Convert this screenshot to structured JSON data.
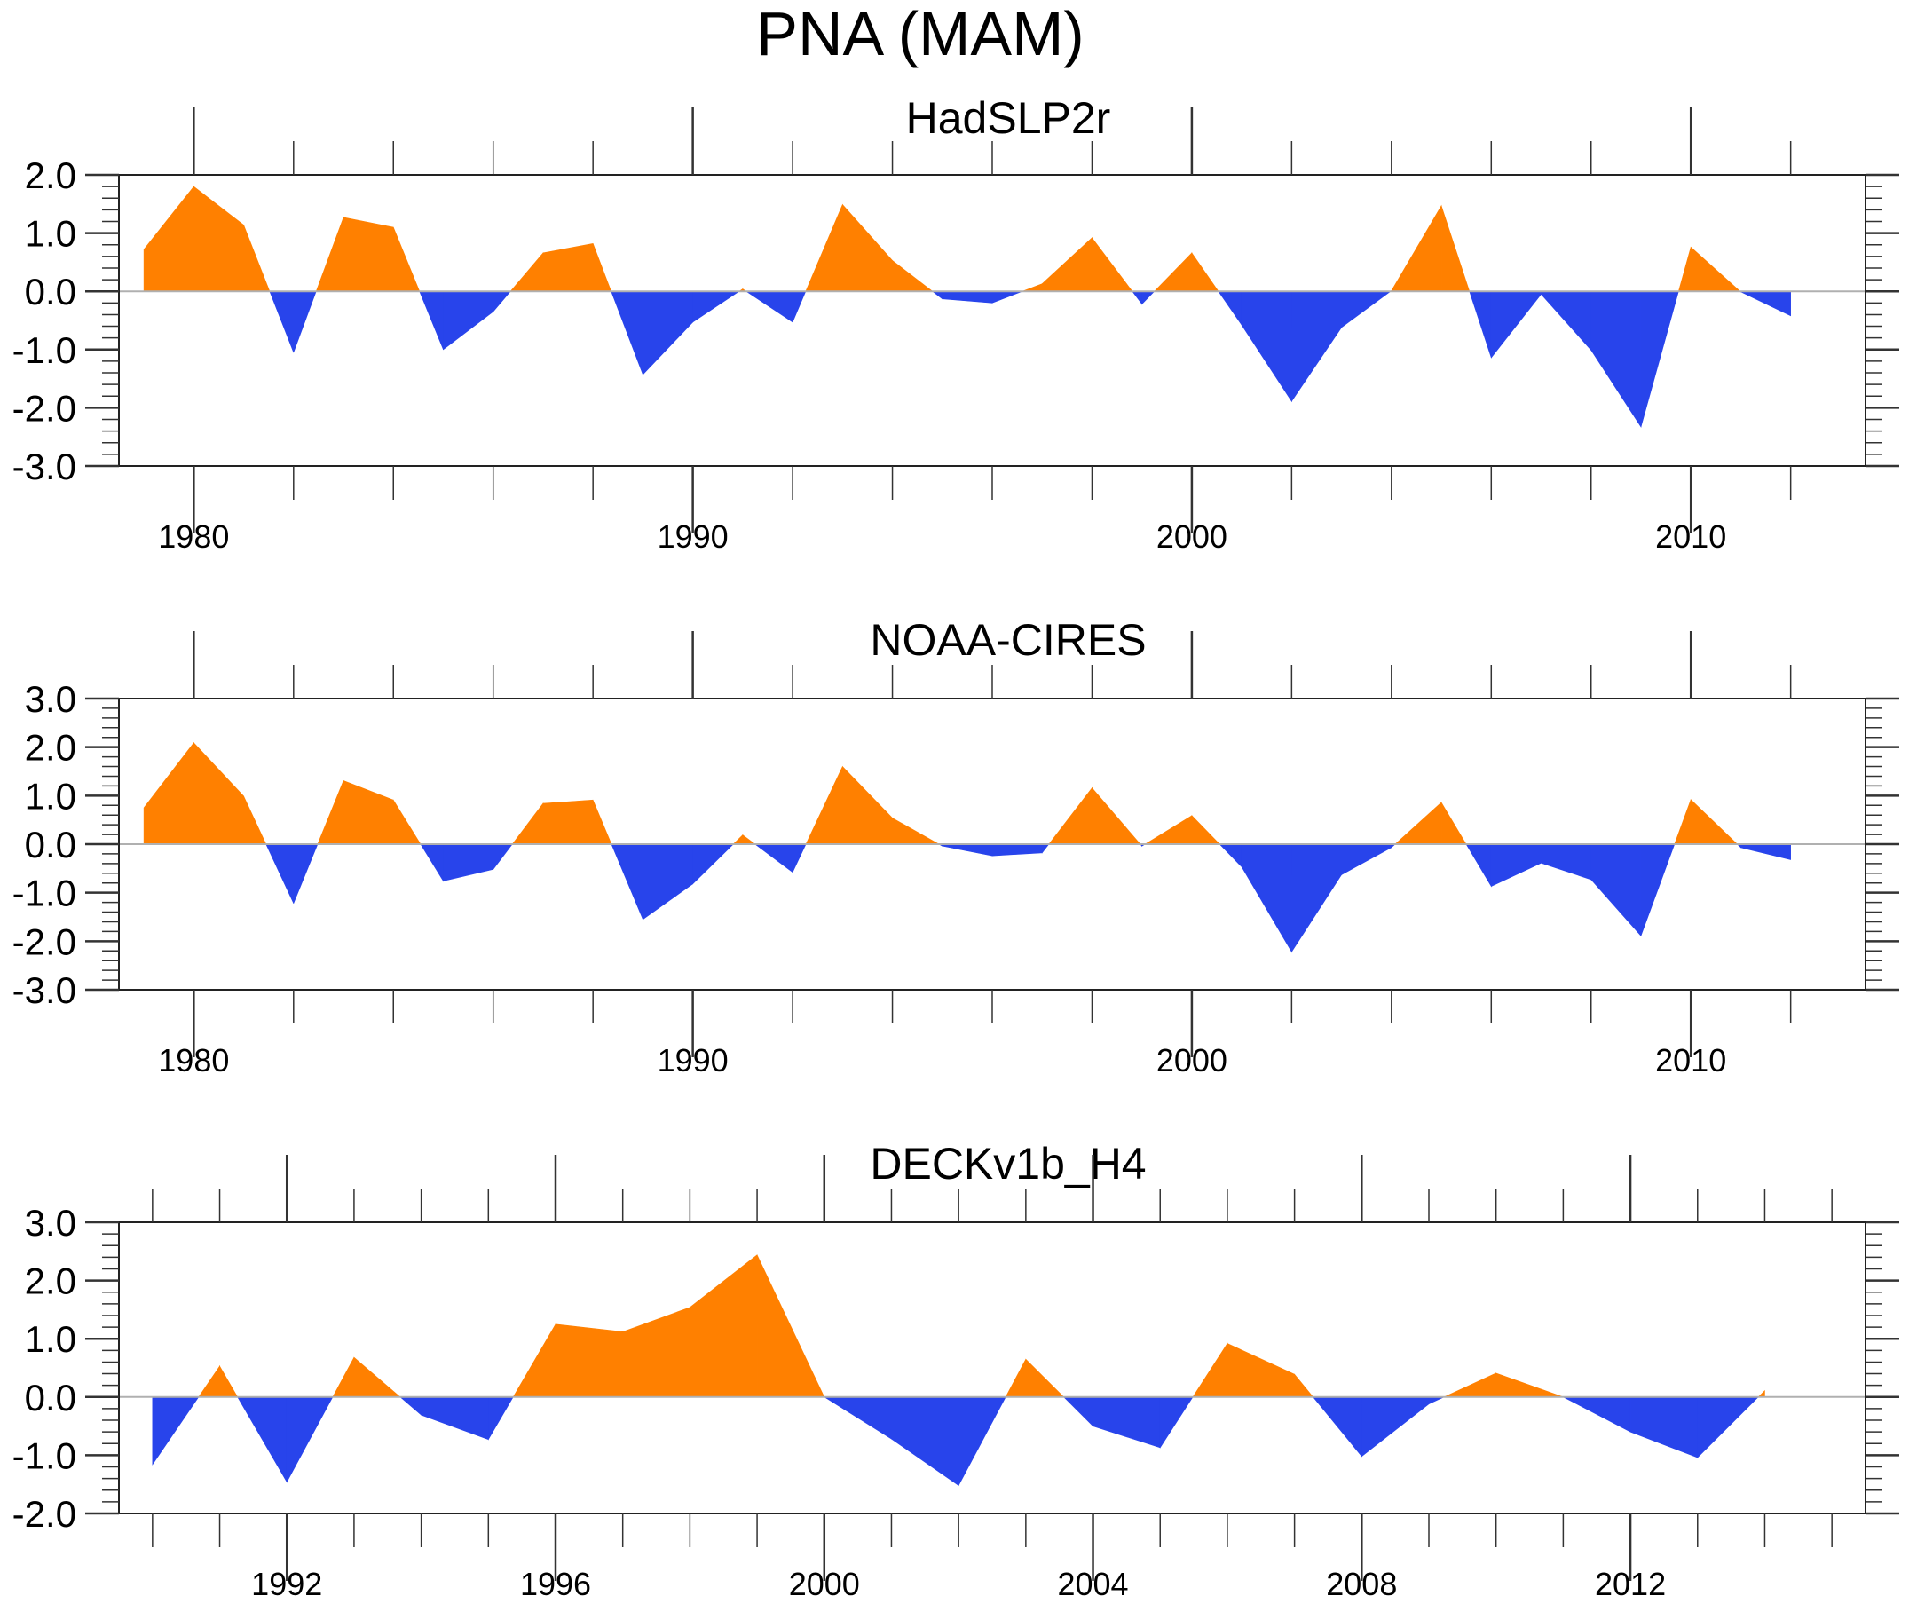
{
  "title": "PNA (MAM)",
  "colors": {
    "positive": "#FF8000",
    "negative": "#2844EB",
    "zero_line": "#b0b0b0"
  },
  "chart_data": [
    {
      "type": "area",
      "title": "HadSLP2r",
      "xlabel": "",
      "ylabel": "",
      "xlim": [
        1978.5,
        2013.5
      ],
      "ylim": [
        -3.0,
        2.0
      ],
      "yticks": [
        2.0,
        1.0,
        0.0,
        -1.0,
        -2.0,
        -3.0
      ],
      "ytick_labels": [
        "2.0",
        "1.0",
        "0.0",
        "-1.0",
        "-2.0",
        "-3.0"
      ],
      "xticks": [
        1980,
        1990,
        2000,
        2010
      ],
      "xtick_labels": [
        "1980",
        "1990",
        "2000",
        "2010"
      ],
      "x_minor_step": 2,
      "grid": false,
      "x": [
        1979,
        1980,
        1981,
        1982,
        1983,
        1984,
        1985,
        1986,
        1987,
        1988,
        1989,
        1990,
        1991,
        1992,
        1993,
        1994,
        1995,
        1996,
        1997,
        1998,
        1999,
        2000,
        2001,
        2002,
        2003,
        2004,
        2005,
        2006,
        2007,
        2008,
        2009,
        2010,
        2011,
        2012
      ],
      "values": [
        0.72,
        1.8,
        1.14,
        -1.05,
        1.27,
        1.1,
        -1.0,
        -0.35,
        0.66,
        0.82,
        -1.43,
        -0.53,
        0.04,
        -0.53,
        1.49,
        0.53,
        -0.13,
        -0.2,
        0.13,
        0.92,
        -0.22,
        0.66,
        -0.58,
        -1.89,
        -0.62,
        0.01,
        1.47,
        -1.14,
        -0.05,
        -1.01,
        -2.33,
        0.76,
        -0.01,
        -0.42
      ]
    },
    {
      "type": "area",
      "title": "NOAA-CIRES",
      "xlabel": "",
      "ylabel": "",
      "xlim": [
        1978.5,
        2013.5
      ],
      "ylim": [
        -3.0,
        3.0
      ],
      "yticks": [
        3.0,
        2.0,
        1.0,
        0.0,
        -1.0,
        -2.0,
        -3.0
      ],
      "ytick_labels": [
        "3.0",
        "2.0",
        "1.0",
        "0.0",
        "-1.0",
        "-2.0",
        "-3.0"
      ],
      "xticks": [
        1980,
        1990,
        2000,
        2010
      ],
      "xtick_labels": [
        "1980",
        "1990",
        "2000",
        "2010"
      ],
      "x_minor_step": 2,
      "grid": false,
      "x": [
        1979,
        1980,
        1981,
        1982,
        1983,
        1984,
        1985,
        1986,
        1987,
        1988,
        1989,
        1990,
        1991,
        1992,
        1993,
        1994,
        1995,
        1996,
        1997,
        1998,
        1999,
        2000,
        2001,
        2002,
        2003,
        2004,
        2005,
        2006,
        2007,
        2008,
        2009,
        2010,
        2011,
        2012
      ],
      "values": [
        0.75,
        2.09,
        0.99,
        -1.22,
        1.31,
        0.91,
        -0.76,
        -0.52,
        0.84,
        0.91,
        -1.55,
        -0.82,
        0.19,
        -0.58,
        1.6,
        0.54,
        -0.04,
        -0.24,
        -0.18,
        1.16,
        -0.04,
        0.59,
        -0.47,
        -2.22,
        -0.63,
        -0.07,
        0.86,
        -0.87,
        -0.39,
        -0.73,
        -1.89,
        0.92,
        -0.07,
        -0.32
      ]
    },
    {
      "type": "area",
      "title": "DECKv1b_H4",
      "xlabel": "",
      "ylabel": "",
      "xlim": [
        1989.5,
        2015.5
      ],
      "ylim": [
        -2.0,
        3.0
      ],
      "yticks": [
        3.0,
        2.0,
        1.0,
        0.0,
        -1.0,
        -2.0
      ],
      "ytick_labels": [
        "3.0",
        "2.0",
        "1.0",
        "0.0",
        "-1.0",
        "-2.0"
      ],
      "xticks": [
        1992,
        1996,
        2000,
        2004,
        2008,
        2012
      ],
      "xtick_labels": [
        "1992",
        "1996",
        "2000",
        "2004",
        "2008",
        "2012"
      ],
      "x_minor_step": 1,
      "grid": false,
      "x": [
        1990,
        1991,
        1992,
        1993,
        1994,
        1995,
        1996,
        1997,
        1998,
        1999,
        2000,
        2001,
        2002,
        2003,
        2004,
        2005,
        2006,
        2007,
        2008,
        2009,
        2010,
        2011,
        2012,
        2013,
        2014
      ],
      "values": [
        -1.16,
        0.53,
        -1.46,
        0.68,
        -0.31,
        -0.73,
        1.25,
        1.12,
        1.54,
        2.44,
        0.0,
        -0.72,
        -1.52,
        0.65,
        -0.5,
        -0.87,
        0.92,
        0.39,
        -1.02,
        -0.12,
        0.41,
        0.0,
        -0.6,
        -1.04,
        0.11
      ]
    }
  ]
}
